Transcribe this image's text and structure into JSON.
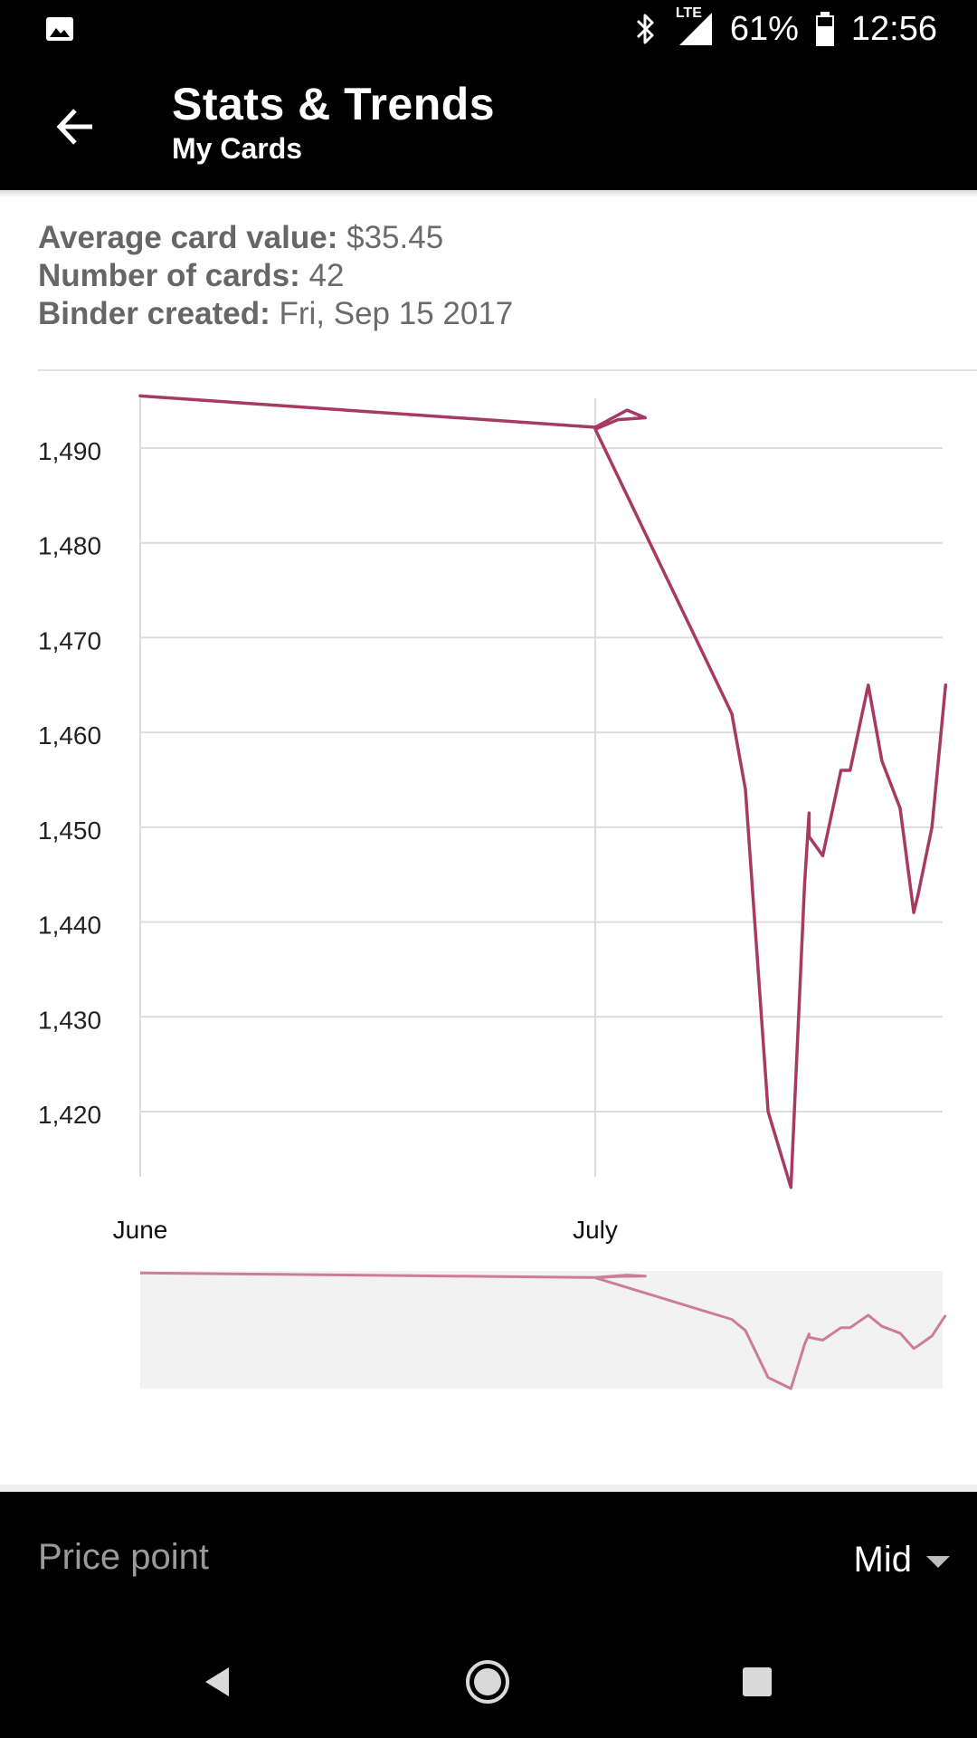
{
  "status_bar": {
    "network": "LTE",
    "battery": "61%",
    "time": "12:56",
    "icons": [
      "image-icon",
      "bluetooth-icon",
      "signal-icon",
      "battery-icon"
    ]
  },
  "app_bar": {
    "title": "Stats & Trends",
    "subtitle": "My Cards",
    "back_icon": "arrow-back-icon"
  },
  "stats": [
    {
      "label": "Average card value:",
      "value": "$35.45"
    },
    {
      "label": "Number of cards:",
      "value": "42"
    },
    {
      "label": "Binder created:",
      "value": "Fri, Sep 15 2017"
    }
  ],
  "colors": {
    "line": "#a63a63",
    "line_light": "#cc7d98",
    "grid": "#dcdcdc",
    "navigator_bg": "#f2f2f2"
  },
  "chart_data": {
    "type": "line",
    "title": "",
    "xlabel": "",
    "ylabel": "",
    "x_tick_labels": [
      "June",
      "July"
    ],
    "y_tick_labels": [
      "1,490",
      "1,480",
      "1,470",
      "1,460",
      "1,450",
      "1,440",
      "1,430",
      "1,420"
    ],
    "y_ticks": [
      1490,
      1480,
      1470,
      1460,
      1450,
      1440,
      1430,
      1420
    ],
    "ylim": [
      1412,
      1497
    ],
    "xlim": [
      0,
      1.77
    ],
    "grid": true,
    "legend": "none",
    "navigator": true,
    "series": [
      {
        "values": [
          [
            0.0,
            1495.5
          ],
          [
            1.0,
            1492.2
          ],
          [
            1.07,
            1494.0
          ],
          [
            1.11,
            1493.2
          ],
          [
            1.05,
            1493.0
          ],
          [
            1.0,
            1492.0
          ],
          [
            1.22,
            1470.0
          ],
          [
            1.3,
            1462.0
          ],
          [
            1.33,
            1454.0
          ],
          [
            1.38,
            1420.0
          ],
          [
            1.43,
            1412.0
          ],
          [
            1.46,
            1444.0
          ],
          [
            1.47,
            1451.5
          ],
          [
            1.47,
            1449.0
          ],
          [
            1.5,
            1447.0
          ],
          [
            1.54,
            1456.0
          ],
          [
            1.56,
            1456.0
          ],
          [
            1.6,
            1465.0
          ],
          [
            1.63,
            1457.0
          ],
          [
            1.67,
            1452.0
          ],
          [
            1.7,
            1441.0
          ],
          [
            1.71,
            1443.0
          ],
          [
            1.74,
            1450.0
          ],
          [
            1.77,
            1465.0
          ]
        ]
      }
    ]
  },
  "price_point": {
    "label": "Price point",
    "value": "Mid",
    "icon": "dropdown-caret-icon"
  },
  "nav_bar": {
    "icons": [
      "nav-back-icon",
      "nav-home-icon",
      "nav-recents-icon"
    ]
  }
}
